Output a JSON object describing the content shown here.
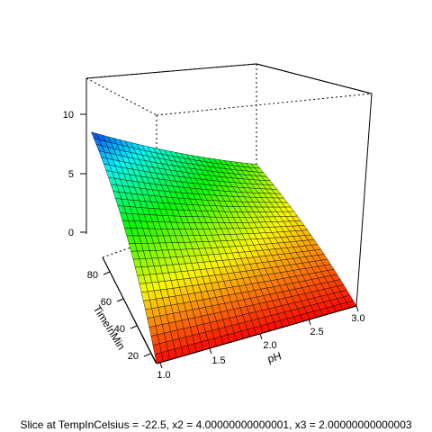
{
  "chart_data": {
    "type": "surface3d",
    "x_axis": {
      "label": "pH",
      "ticks": [
        "1.0",
        "1.5",
        "2.0",
        "2.5",
        "3.0"
      ],
      "range": [
        1.0,
        3.0
      ]
    },
    "y_axis": {
      "label": "TimeInMin",
      "ticks": [
        "20",
        "40",
        "60",
        "80"
      ],
      "range": [
        10,
        90
      ]
    },
    "z_axis": {
      "label": "",
      "ticks": [
        "0",
        "5",
        "10"
      ],
      "range": [
        -3,
        12
      ]
    },
    "surface_corners": [
      {
        "pH": 1.0,
        "TimeInMin": 90,
        "value": 7.5
      },
      {
        "pH": 3.0,
        "TimeInMin": 90,
        "value": 1.2
      },
      {
        "pH": 1.0,
        "TimeInMin": 10,
        "value": -3.0
      },
      {
        "pH": 3.0,
        "TimeInMin": 10,
        "value": -3.0
      }
    ],
    "colormap": "rainbow (blue high to red low)",
    "caption": "Slice at TempInCelsius = -22.5, x2 = 4.00000000000001, x3 = 2.00000000000003"
  }
}
